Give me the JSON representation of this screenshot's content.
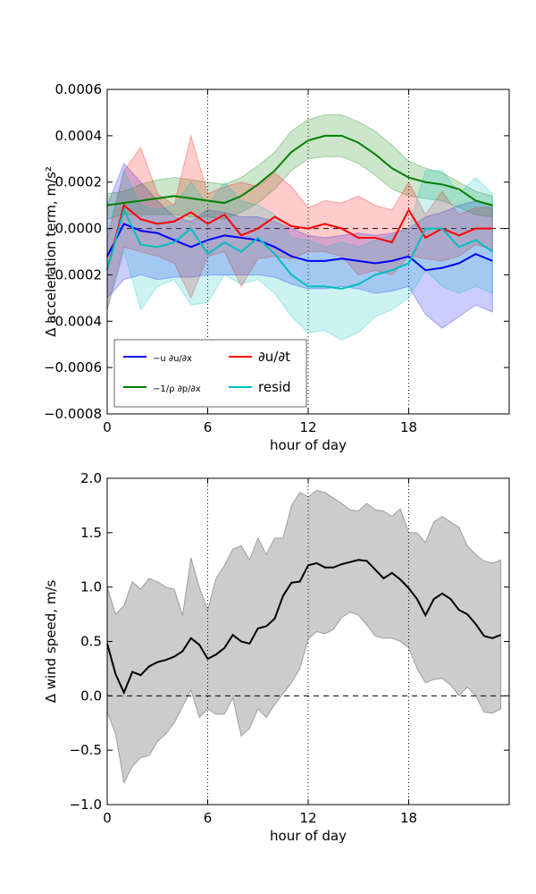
{
  "chart_data": [
    {
      "type": "line",
      "xlabel": "hour of day",
      "ylabel": "Δ acceleration term, m/s²",
      "x": [
        0,
        1,
        2,
        3,
        4,
        5,
        6,
        7,
        8,
        9,
        10,
        11,
        12,
        13,
        14,
        15,
        16,
        17,
        18,
        19,
        20,
        21,
        22,
        23
      ],
      "xlim": [
        0,
        24
      ],
      "xticks": [
        0,
        6,
        12,
        18
      ],
      "ylim": [
        -0.0008,
        0.0006
      ],
      "yticks": [
        {
          "value": -0.0008,
          "label": "−0.0008"
        },
        {
          "value": -0.0006,
          "label": "−0.0006"
        },
        {
          "value": -0.0004,
          "label": "−0.0004"
        },
        {
          "value": -0.0002,
          "label": "−0.0002"
        },
        {
          "value": 0,
          "label": "0.0000"
        },
        {
          "value": 0.0002,
          "label": "0.0002"
        },
        {
          "value": 0.0004,
          "label": "0.0004"
        },
        {
          "value": 0.0006,
          "label": "0.0006"
        }
      ],
      "xgrid": true,
      "hline": 0,
      "legend": "lower left",
      "series": [
        {
          "name": "−u ∂u/∂x",
          "color": "#0000ff",
          "values": [
            -0.00012,
            2e-05,
            -1e-05,
            -2e-05,
            -5e-05,
            -8e-05,
            -5e-05,
            -3e-05,
            -4e-05,
            -5e-05,
            -8e-05,
            -0.00012,
            -0.00014,
            -0.00014,
            -0.00013,
            -0.00014,
            -0.00015,
            -0.00014,
            -0.00012,
            -0.00018,
            -0.00017,
            -0.00015,
            -0.00011,
            -0.00014
          ],
          "upper": [
            0.0001,
            0.00028,
            0.0002,
            0.00012,
            5e-05,
            3e-05,
            8e-05,
            7e-05,
            5e-05,
            5e-05,
            3e-05,
            0.0,
            -3e-05,
            -4e-05,
            -3e-05,
            -2e-05,
            -3e-05,
            -2e-05,
            0.0,
            5e-05,
            7e-05,
            0.0001,
            0.00012,
            0.0001
          ],
          "lower": [
            -0.0003,
            -0.00022,
            -0.0002,
            -0.00022,
            -0.00021,
            -0.00021,
            -0.0002,
            -0.0002,
            -0.0002,
            -0.0002,
            -0.00021,
            -0.00024,
            -0.00026,
            -0.00026,
            -0.00025,
            -0.00026,
            -0.00028,
            -0.00027,
            -0.00025,
            -0.00037,
            -0.00043,
            -0.00038,
            -0.00033,
            -0.00036
          ]
        },
        {
          "name": "−1/ρ ∂p/∂x",
          "color": "#008000",
          "values": [
            0.0001,
            0.00011,
            0.00012,
            0.00013,
            0.00014,
            0.00013,
            0.00012,
            0.00011,
            0.00014,
            0.00019,
            0.00025,
            0.00033,
            0.00038,
            0.0004,
            0.0004,
            0.00037,
            0.00032,
            0.00026,
            0.00022,
            0.0002,
            0.00019,
            0.00017,
            0.00012,
            0.0001
          ],
          "upper": [
            0.00015,
            0.00016,
            0.00019,
            0.00021,
            0.00022,
            0.00021,
            0.0002,
            0.00019,
            0.00022,
            0.00027,
            0.00033,
            0.00042,
            0.00047,
            0.00049,
            0.00049,
            0.00046,
            0.00042,
            0.00036,
            0.00029,
            0.00026,
            0.00024,
            0.0002,
            0.00016,
            0.00014
          ],
          "lower": [
            4e-05,
            6e-05,
            6e-05,
            6e-05,
            6e-05,
            5e-05,
            5e-05,
            4e-05,
            7e-05,
            0.00011,
            0.00017,
            0.00025,
            0.0003,
            0.00031,
            0.00031,
            0.00028,
            0.00023,
            0.00017,
            0.00014,
            0.00013,
            0.00012,
            9e-05,
            6e-05,
            5e-05
          ]
        },
        {
          "name": "∂u/∂t",
          "color": "#ff0000",
          "values": [
            -0.00018,
            0.0001,
            4e-05,
            2e-05,
            3e-05,
            7e-05,
            2e-05,
            6e-05,
            -3e-05,
            0.0,
            5e-05,
            1e-05,
            0.0,
            2e-05,
            0.0,
            -4e-05,
            -4e-05,
            -6e-05,
            8e-05,
            -4e-05,
            0.0,
            -3e-05,
            0.0,
            0.0
          ],
          "upper": [
            -5e-05,
            0.00025,
            0.00035,
            0.00015,
            0.0001,
            0.0004,
            0.00015,
            0.00018,
            0.0002,
            0.00018,
            0.00024,
            0.00018,
            9e-05,
            0.00012,
            0.00011,
            0.00014,
            0.0001,
            8e-05,
            0.0002,
            6e-05,
            0.00016,
            6e-05,
            9e-05,
            9e-05
          ],
          "lower": [
            -0.00035,
            -8e-05,
            -0.0001,
            -0.00012,
            -0.00015,
            -0.0003,
            -0.00012,
            -0.0001,
            -0.00025,
            -0.00013,
            -0.00012,
            -0.00013,
            -0.0001,
            -0.0001,
            -0.00012,
            -0.0002,
            -0.00018,
            -0.0002,
            -0.00012,
            -0.00013,
            -0.00014,
            -0.00012,
            -7e-05,
            -9e-05
          ]
        },
        {
          "name": "resid",
          "color": "#00bfbf",
          "values": [
            -0.00018,
            8e-05,
            -7e-05,
            -8e-05,
            -6e-05,
            0.0,
            -0.00011,
            -6e-05,
            -0.0001,
            -4e-05,
            -0.00011,
            -0.0002,
            -0.00025,
            -0.00025,
            -0.00026,
            -0.00024,
            -0.0002,
            -0.00018,
            -0.00015,
            0.0,
            0.0,
            -8e-05,
            -5e-05,
            -0.0001
          ],
          "upper": [
            -2e-05,
            0.00025,
            0.0001,
            8e-05,
            0.0001,
            0.0002,
            0.0001,
            0.0002,
            0.00012,
            0.0001,
            6e-05,
            -4e-05,
            -5e-05,
            -8e-05,
            -6e-05,
            -8e-05,
            -5e-05,
            -3e-05,
            0.0,
            0.00025,
            0.00025,
            0.00015,
            0.00022,
            0.00015
          ],
          "lower": [
            -0.00035,
            -0.0001,
            -0.00035,
            -0.00025,
            -0.00022,
            -0.00033,
            -0.00032,
            -0.0002,
            -0.00024,
            -0.00022,
            -0.00028,
            -0.00038,
            -0.00045,
            -0.00044,
            -0.00048,
            -0.00045,
            -0.00038,
            -0.00035,
            -0.0003,
            -0.00018,
            -0.00025,
            -0.00028,
            -0.00025,
            -0.00028
          ]
        }
      ]
    },
    {
      "type": "line",
      "xlabel": "hour of day",
      "ylabel": "Δ wind speed, m/s",
      "x": [
        0,
        0.5,
        1,
        1.5,
        2,
        2.5,
        3,
        3.5,
        4,
        4.5,
        5,
        5.5,
        6,
        6.5,
        7,
        7.5,
        8,
        8.5,
        9,
        9.5,
        10,
        10.5,
        11,
        11.5,
        12,
        12.5,
        13,
        13.5,
        14,
        14.5,
        15,
        15.5,
        16,
        16.5,
        17,
        17.5,
        18,
        18.5,
        19,
        19.5,
        20,
        20.5,
        21,
        21.5,
        22,
        22.5,
        23,
        23.5
      ],
      "xlim": [
        0,
        24
      ],
      "xticks": [
        0,
        6,
        12,
        18
      ],
      "ylim": [
        -1.0,
        2.0
      ],
      "yticks": [
        {
          "value": -1.0,
          "label": "−1.0"
        },
        {
          "value": -0.5,
          "label": "−0.5"
        },
        {
          "value": 0,
          "label": "0.0"
        },
        {
          "value": 0.5,
          "label": "0.5"
        },
        {
          "value": 1.0,
          "label": "1.0"
        },
        {
          "value": 1.5,
          "label": "1.5"
        },
        {
          "value": 2.0,
          "label": "2.0"
        }
      ],
      "xgrid": true,
      "hline": 0,
      "series": [
        {
          "color": "#000000",
          "values": [
            0.48,
            0.2,
            0.03,
            0.22,
            0.19,
            0.27,
            0.31,
            0.33,
            0.36,
            0.41,
            0.53,
            0.47,
            0.34,
            0.38,
            0.44,
            0.56,
            0.5,
            0.48,
            0.62,
            0.64,
            0.71,
            0.92,
            1.04,
            1.05,
            1.2,
            1.22,
            1.18,
            1.18,
            1.21,
            1.23,
            1.25,
            1.24,
            1.16,
            1.08,
            1.13,
            1.07,
            0.99,
            0.89,
            0.74,
            0.89,
            0.94,
            0.89,
            0.79,
            0.75,
            0.66,
            0.55,
            0.53,
            0.56
          ],
          "upper": [
            1.0,
            0.75,
            0.83,
            1.05,
            0.98,
            1.08,
            1.05,
            1.0,
            0.98,
            0.74,
            1.27,
            1.0,
            0.79,
            1.08,
            1.2,
            1.35,
            1.38,
            1.25,
            1.45,
            1.3,
            1.45,
            1.45,
            1.75,
            1.87,
            1.83,
            1.89,
            1.87,
            1.82,
            1.77,
            1.71,
            1.7,
            1.77,
            1.71,
            1.7,
            1.65,
            1.72,
            1.5,
            1.5,
            1.41,
            1.6,
            1.65,
            1.6,
            1.55,
            1.38,
            1.3,
            1.24,
            1.22,
            1.25
          ],
          "lower": [
            -0.15,
            -0.35,
            -0.8,
            -0.65,
            -0.57,
            -0.55,
            -0.42,
            -0.35,
            -0.25,
            -0.1,
            0.05,
            -0.2,
            -0.12,
            -0.17,
            -0.17,
            -0.02,
            -0.37,
            -0.3,
            -0.12,
            -0.2,
            -0.08,
            0.02,
            0.12,
            0.25,
            0.52,
            0.59,
            0.57,
            0.61,
            0.72,
            0.77,
            0.74,
            0.65,
            0.55,
            0.53,
            0.53,
            0.5,
            0.44,
            0.25,
            0.12,
            0.15,
            0.16,
            0.1,
            0.0,
            0.08,
            0.0,
            -0.15,
            -0.16,
            -0.12
          ]
        }
      ]
    }
  ]
}
